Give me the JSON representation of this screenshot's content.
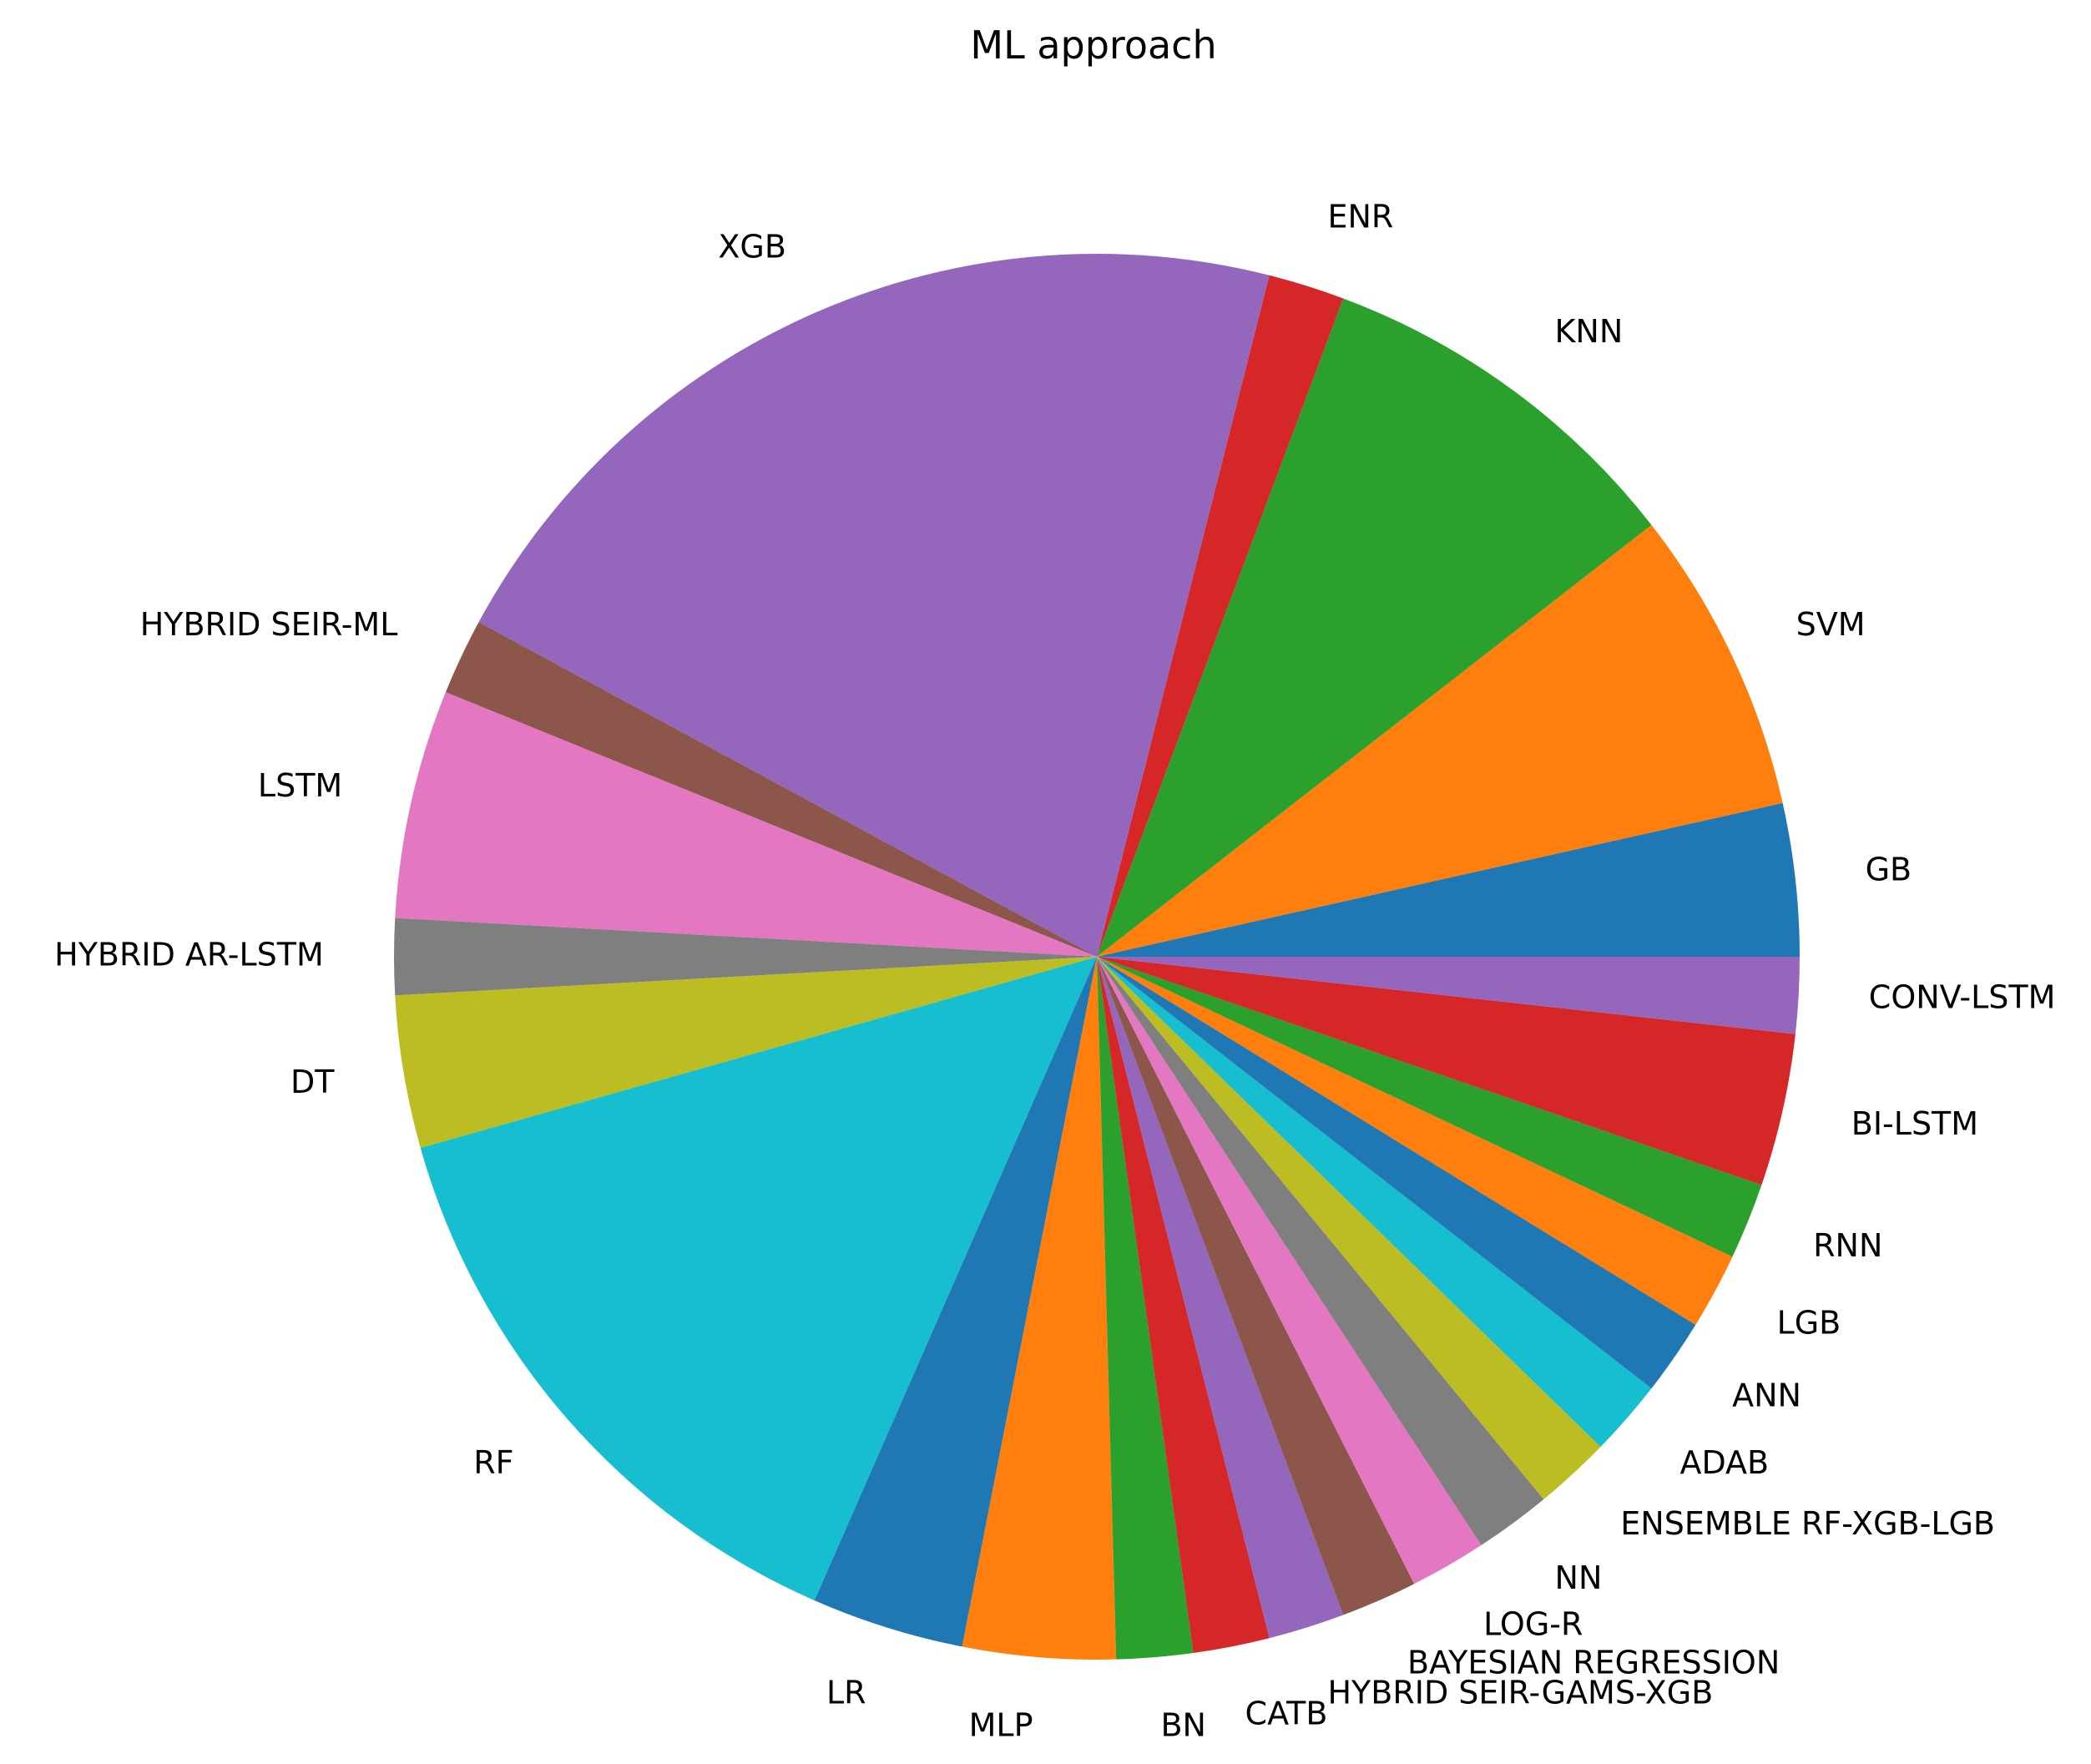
{
  "chart_data": {
    "type": "pie",
    "title": "ML approach",
    "start_angle_deg": 0,
    "direction": "counterclockwise",
    "slices": [
      {
        "label": "GB",
        "value": 2,
        "color": "#1f77b4"
      },
      {
        "label": "SVM",
        "value": 4,
        "color": "#ff7f0e"
      },
      {
        "label": "KNN",
        "value": 5,
        "color": "#2ca02c"
      },
      {
        "label": "ENR",
        "value": 1,
        "color": "#d62728"
      },
      {
        "label": "XGB",
        "value": 12,
        "color": "#9467bd"
      },
      {
        "label": "HYBRID SEIR-ML",
        "value": 1,
        "color": "#8c564b"
      },
      {
        "label": "LSTM",
        "value": 3,
        "color": "#e377c2"
      },
      {
        "label": "HYBRID AR-LSTM",
        "value": 1,
        "color": "#7f7f7f"
      },
      {
        "label": "DT",
        "value": 2,
        "color": "#bcbd22"
      },
      {
        "label": "RF",
        "value": 8,
        "color": "#17becf"
      },
      {
        "label": "LR",
        "value": 2,
        "color": "#1f77b4"
      },
      {
        "label": "MLP",
        "value": 2,
        "color": "#ff7f0e"
      },
      {
        "label": "BN",
        "value": 1,
        "color": "#2ca02c"
      },
      {
        "label": "CATB",
        "value": 1,
        "color": "#d62728"
      },
      {
        "label": "HYBRID SEIR-GAMS-XGB",
        "value": 1,
        "color": "#9467bd"
      },
      {
        "label": "BAYESIAN REGRESSION",
        "value": 1,
        "color": "#8c564b"
      },
      {
        "label": "LOG-R",
        "value": 1,
        "color": "#e377c2"
      },
      {
        "label": "NN",
        "value": 1,
        "color": "#7f7f7f"
      },
      {
        "label": "ENSEMBLE RF-XGB-LGB",
        "value": 1,
        "color": "#bcbd22"
      },
      {
        "label": "ADAB",
        "value": 1,
        "color": "#17becf"
      },
      {
        "label": "ANN",
        "value": 1,
        "color": "#1f77b4"
      },
      {
        "label": "LGB",
        "value": 1,
        "color": "#ff7f0e"
      },
      {
        "label": "RNN",
        "value": 1,
        "color": "#2ca02c"
      },
      {
        "label": "BI-LSTM",
        "value": 2,
        "color": "#d62728"
      },
      {
        "label": "CONV-LSTM",
        "value": 1,
        "color": "#9467bd"
      }
    ]
  }
}
